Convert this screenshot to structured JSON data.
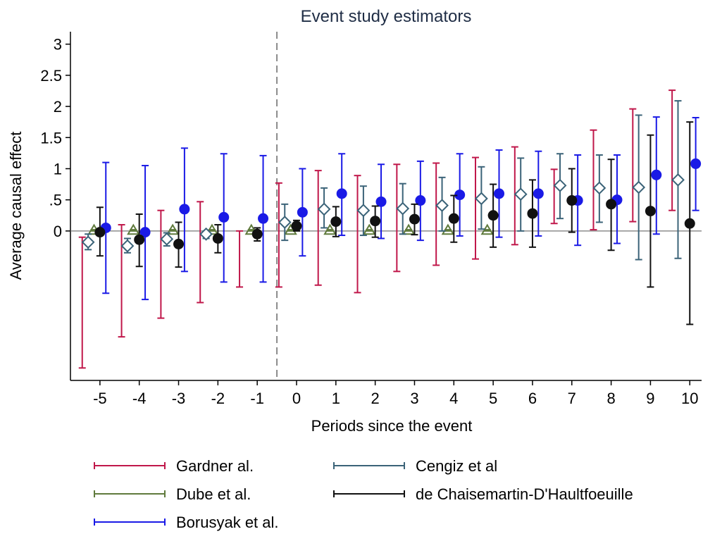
{
  "chart_data": {
    "type": "scatter",
    "title": "Event study estimators",
    "xlabel": "Periods since the event",
    "ylabel": "Average causal effect",
    "xlim": [
      -5.75,
      10.3
    ],
    "ylim": [
      -2.4,
      3.2
    ],
    "x_ticks": [
      "-5",
      "-4",
      "-3",
      "-2",
      "-1",
      "0",
      "1",
      "2",
      "3",
      "4",
      "5",
      "6",
      "7",
      "8",
      "9",
      "10"
    ],
    "y_ticks": [
      "3",
      "2.5",
      "2",
      "1.5",
      "1",
      ".5",
      "0"
    ],
    "event_line_x": -0.5,
    "grid": false,
    "legend_position": "bottom",
    "series": [
      {
        "name": "Gardner al.",
        "color": "#c0174a",
        "marker": "none",
        "offset": -0.45,
        "points": [
          {
            "x": -5,
            "y": -1.0,
            "lo": -2.2,
            "hi": -0.1
          },
          {
            "x": -4,
            "y": -0.6,
            "lo": -1.7,
            "hi": 0.1
          },
          {
            "x": -3,
            "y": -0.55,
            "lo": -1.4,
            "hi": 0.33
          },
          {
            "x": -2,
            "y": -0.35,
            "lo": -1.15,
            "hi": 0.47
          },
          {
            "x": -1,
            "y": -0.1,
            "lo": -0.9,
            "hi": 0.0
          },
          {
            "x": 0,
            "y": 0.3,
            "lo": -0.9,
            "hi": 0.77
          },
          {
            "x": 1,
            "y": 0.05,
            "lo": -0.87,
            "hi": 0.97
          },
          {
            "x": 2,
            "y": 0.1,
            "lo": -0.99,
            "hi": 0.89
          },
          {
            "x": 3,
            "y": 0.2,
            "lo": -0.65,
            "hi": 1.07
          },
          {
            "x": 4,
            "y": 0.25,
            "lo": -0.55,
            "hi": 1.09
          },
          {
            "x": 5,
            "y": 0.38,
            "lo": -0.45,
            "hi": 1.18
          },
          {
            "x": 6,
            "y": 0.55,
            "lo": -0.22,
            "hi": 1.35
          },
          {
            "x": 7,
            "y": 0.52,
            "lo": 0.12,
            "hi": 0.99
          },
          {
            "x": 8,
            "y": 0.75,
            "lo": 0.02,
            "hi": 1.62
          },
          {
            "x": 9,
            "y": 1.05,
            "lo": 0.15,
            "hi": 1.96
          },
          {
            "x": 10,
            "y": 1.3,
            "lo": 0.33,
            "hi": 2.26
          }
        ]
      },
      {
        "name": "Dube et al.",
        "color": "#5f7a3c",
        "marker": "triangle",
        "offset": -0.15,
        "points": [
          {
            "x": -5,
            "y": 0.01,
            "lo": 0.0,
            "hi": 0.02
          },
          {
            "x": -4,
            "y": 0.01,
            "lo": 0.0,
            "hi": 0.02
          },
          {
            "x": -3,
            "y": 0.01,
            "lo": 0.0,
            "hi": 0.02
          },
          {
            "x": -2,
            "y": 0.01,
            "lo": 0.0,
            "hi": 0.02
          },
          {
            "x": -1,
            "y": 0.01,
            "lo": 0.0,
            "hi": 0.02
          },
          {
            "x": 0,
            "y": 0.01,
            "lo": 0.0,
            "hi": 0.02
          },
          {
            "x": 1,
            "y": 0.01,
            "lo": 0.0,
            "hi": 0.02
          },
          {
            "x": 2,
            "y": 0.01,
            "lo": 0.0,
            "hi": 0.02
          },
          {
            "x": 3,
            "y": 0.01,
            "lo": 0.0,
            "hi": 0.02
          },
          {
            "x": 4,
            "y": 0.01,
            "lo": 0.0,
            "hi": 0.02
          },
          {
            "x": 5,
            "y": 0.01,
            "lo": 0.0,
            "hi": 0.02
          }
        ]
      },
      {
        "name": "Borusyak et al.",
        "color": "#1a1ae6",
        "marker": "circle",
        "offset": 0.15,
        "points": [
          {
            "x": -5,
            "y": 0.05,
            "lo": -1.0,
            "hi": 1.1
          },
          {
            "x": -4,
            "y": -0.02,
            "lo": -1.1,
            "hi": 1.05
          },
          {
            "x": -3,
            "y": 0.35,
            "lo": -0.65,
            "hi": 1.33
          },
          {
            "x": -2,
            "y": 0.22,
            "lo": -0.82,
            "hi": 1.24
          },
          {
            "x": -1,
            "y": 0.2,
            "lo": -0.82,
            "hi": 1.21
          },
          {
            "x": 0,
            "y": 0.3,
            "lo": -0.4,
            "hi": 1.0
          },
          {
            "x": 1,
            "y": 0.6,
            "lo": -0.07,
            "hi": 1.24
          },
          {
            "x": 2,
            "y": 0.47,
            "lo": -0.12,
            "hi": 1.07
          },
          {
            "x": 3,
            "y": 0.49,
            "lo": -0.15,
            "hi": 1.12
          },
          {
            "x": 4,
            "y": 0.58,
            "lo": -0.08,
            "hi": 1.24
          },
          {
            "x": 5,
            "y": 0.6,
            "lo": -0.1,
            "hi": 1.3
          },
          {
            "x": 6,
            "y": 0.6,
            "lo": -0.08,
            "hi": 1.28
          },
          {
            "x": 7,
            "y": 0.49,
            "lo": -0.23,
            "hi": 1.22
          },
          {
            "x": 8,
            "y": 0.5,
            "lo": -0.2,
            "hi": 1.22
          },
          {
            "x": 9,
            "y": 0.9,
            "lo": -0.05,
            "hi": 1.83
          },
          {
            "x": 10,
            "y": 1.08,
            "lo": 0.33,
            "hi": 1.82
          }
        ]
      },
      {
        "name": "Cengiz et al",
        "color": "#3b6378",
        "marker": "diamond",
        "offset": -0.3,
        "points": [
          {
            "x": -5,
            "y": -0.18,
            "lo": -0.3,
            "hi": -0.05
          },
          {
            "x": -4,
            "y": -0.24,
            "lo": -0.35,
            "hi": -0.12
          },
          {
            "x": -3,
            "y": -0.13,
            "lo": -0.24,
            "hi": -0.03
          },
          {
            "x": -2,
            "y": -0.05,
            "lo": -0.12,
            "hi": 0.0
          },
          {
            "x": 0,
            "y": 0.14,
            "lo": -0.15,
            "hi": 0.43
          },
          {
            "x": 1,
            "y": 0.35,
            "lo": 0.05,
            "hi": 0.69
          },
          {
            "x": 2,
            "y": 0.33,
            "lo": -0.07,
            "hi": 0.72
          },
          {
            "x": 3,
            "y": 0.36,
            "lo": -0.05,
            "hi": 0.76
          },
          {
            "x": 4,
            "y": 0.41,
            "lo": 0.0,
            "hi": 0.86
          },
          {
            "x": 5,
            "y": 0.52,
            "lo": 0.03,
            "hi": 1.03
          },
          {
            "x": 6,
            "y": 0.59,
            "lo": 0.0,
            "hi": 1.17
          },
          {
            "x": 7,
            "y": 0.73,
            "lo": 0.2,
            "hi": 1.24
          },
          {
            "x": 8,
            "y": 0.69,
            "lo": 0.14,
            "hi": 1.22
          },
          {
            "x": 9,
            "y": 0.7,
            "lo": -0.46,
            "hi": 1.86
          },
          {
            "x": 10,
            "y": 0.82,
            "lo": -0.44,
            "hi": 2.09
          }
        ]
      },
      {
        "name": "de Chaisemartin-D'Haultfoeuille",
        "color": "#111111",
        "marker": "circle",
        "offset": 0.0,
        "points": [
          {
            "x": -5,
            "y": -0.02,
            "lo": -0.4,
            "hi": 0.38
          },
          {
            "x": -4,
            "y": -0.14,
            "lo": -0.57,
            "hi": 0.27
          },
          {
            "x": -3,
            "y": -0.21,
            "lo": -0.58,
            "hi": 0.14
          },
          {
            "x": -2,
            "y": -0.12,
            "lo": -0.35,
            "hi": 0.1
          },
          {
            "x": -1,
            "y": -0.05,
            "lo": -0.16,
            "hi": 0.05
          },
          {
            "x": 0,
            "y": 0.08,
            "lo": 0.0,
            "hi": 0.17
          },
          {
            "x": 1,
            "y": 0.15,
            "lo": -0.09,
            "hi": 0.39
          },
          {
            "x": 2,
            "y": 0.16,
            "lo": -0.1,
            "hi": 0.4
          },
          {
            "x": 3,
            "y": 0.19,
            "lo": -0.06,
            "hi": 0.43
          },
          {
            "x": 4,
            "y": 0.2,
            "lo": -0.18,
            "hi": 0.57
          },
          {
            "x": 5,
            "y": 0.25,
            "lo": -0.26,
            "hi": 0.75
          },
          {
            "x": 6,
            "y": 0.28,
            "lo": -0.26,
            "hi": 0.82
          },
          {
            "x": 7,
            "y": 0.49,
            "lo": -0.02,
            "hi": 1.0
          },
          {
            "x": 8,
            "y": 0.43,
            "lo": -0.31,
            "hi": 1.15
          },
          {
            "x": 9,
            "y": 0.32,
            "lo": -0.9,
            "hi": 1.54
          },
          {
            "x": 10,
            "y": 0.12,
            "lo": -1.5,
            "hi": 1.75
          }
        ]
      }
    ],
    "legend": {
      "columns": [
        [
          "Gardner al.",
          "Dube et al.",
          "Borusyak et al."
        ],
        [
          "Cengiz et al",
          "de Chaisemartin-D'Haultfoeuille"
        ]
      ]
    }
  }
}
